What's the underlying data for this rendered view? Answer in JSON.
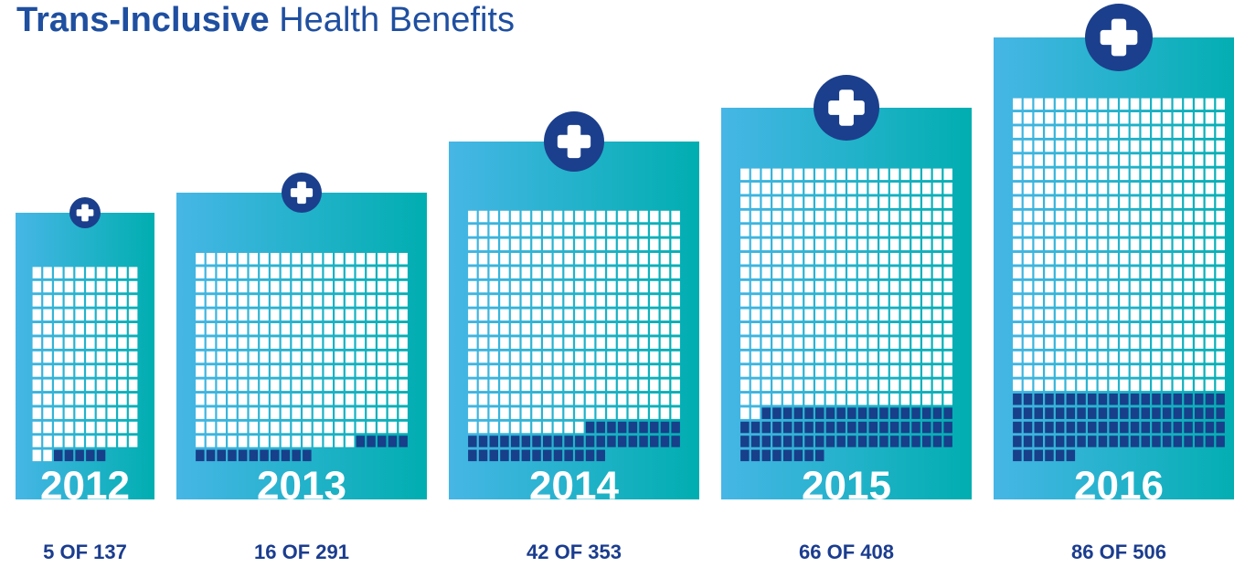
{
  "chart_data": {
    "type": "waffle",
    "title_emphasis": "Trans-Inclusive",
    "title": "Health Benefits",
    "categories": [
      "2012",
      "2013",
      "2014",
      "2015",
      "2016"
    ],
    "values": [
      5,
      16,
      42,
      66,
      86
    ],
    "totals": [
      137,
      291,
      353,
      408,
      506
    ],
    "value_labels": [
      "5 OF 137",
      "16 OF 291",
      "42 OF 353",
      "66 OF 408",
      "86 OF 506"
    ],
    "color": "#173f8a",
    "base_color": "#ffffff"
  }
}
